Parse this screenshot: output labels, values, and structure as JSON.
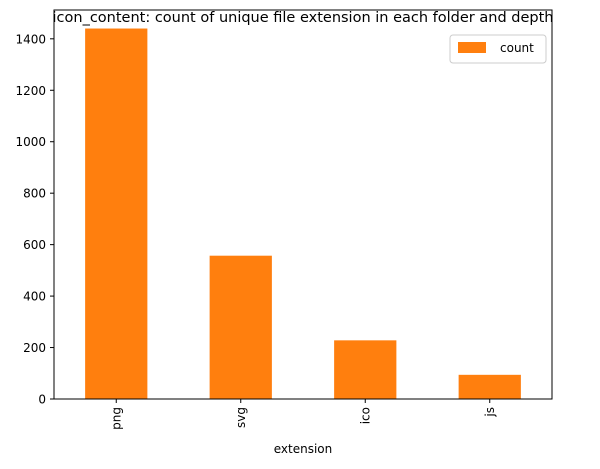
{
  "chart_data": {
    "type": "bar",
    "title": "icon_content: count of unique file extension in each folder and depth",
    "xlabel": "extension",
    "ylabel": "",
    "categories": [
      "png",
      "svg",
      "ico",
      "js"
    ],
    "series": [
      {
        "name": "count",
        "values": [
          1440,
          557,
          228,
          94
        ],
        "color": "#ff7f0e"
      }
    ],
    "ylim": [
      0,
      1512
    ],
    "yticks": [
      0,
      200,
      400,
      600,
      800,
      1000,
      1200,
      1400
    ],
    "grid": false,
    "legend": "top-right"
  }
}
